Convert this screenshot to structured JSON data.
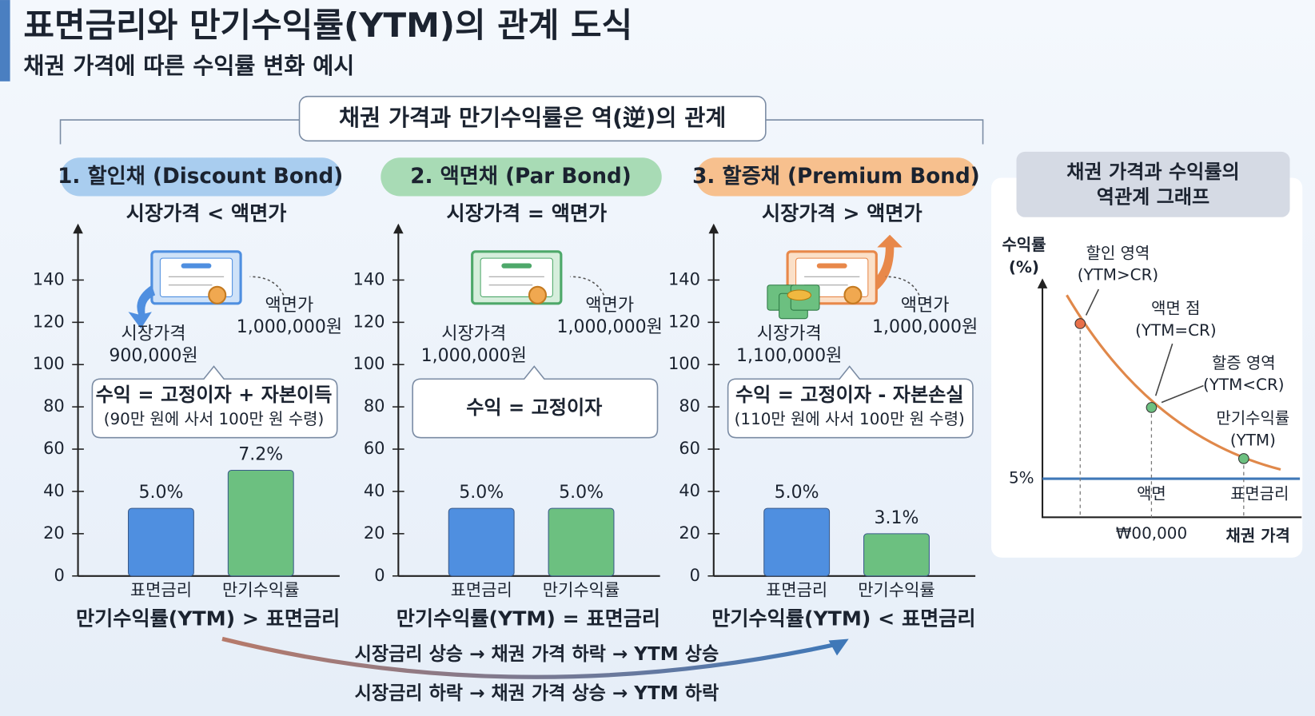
{
  "header": {
    "title": "표면금리와 만기수익률(YTM)의 관계 도식",
    "subtitle": "채권 가격에 따른 수익률 변화 예시"
  },
  "banner": "채권 가격과 만기수익률은 역(逆)의 관계",
  "panels": [
    {
      "title": "1. 할인채 (Discount Bond)",
      "condition": "시장가격 < 액면가",
      "face": [
        "액면가",
        "1,000,000원"
      ],
      "price": [
        "시장가격",
        "900,000원"
      ],
      "formula": [
        "수익 = 고정이자 + 자본이득",
        "(90만 원에 사서 100만 원 수령)"
      ],
      "relation": "만기수익률(YTM) > 표면금리"
    },
    {
      "title": "2. 액면채 (Par Bond)",
      "condition": "시장가격 = 액면가",
      "face": [
        "액면가",
        "1,000,000원"
      ],
      "price": [
        "시장가격",
        "1,000,000원"
      ],
      "formula": [
        "수익 = 고정이자"
      ],
      "relation": "만기수익률(YTM) = 표면금리"
    },
    {
      "title": "3. 할증채 (Premium Bond)",
      "condition": "시장가격 > 액면가",
      "face": [
        "액면가",
        "1,000,000원"
      ],
      "price": [
        "시장가격",
        "1,100,000원"
      ],
      "formula": [
        "수익 = 고정이자 - 자본손실",
        "(110만 원에 사서 100만 원 수령)"
      ],
      "relation": "만기수익률(YTM) < 표면금리"
    }
  ],
  "chart_data": [
    {
      "type": "bar",
      "categories": [
        "표면금리",
        "만기수익률"
      ],
      "values": [
        32,
        50
      ],
      "annotations": [
        "5.0%",
        "7.2%"
      ],
      "colors": [
        "#4f8fe0",
        "#6cc080"
      ],
      "ylim": [
        0,
        160
      ],
      "yticks": [
        0,
        20,
        40,
        60,
        80,
        100,
        120,
        140
      ]
    },
    {
      "type": "bar",
      "categories": [
        "표면금리",
        "만기수익률"
      ],
      "values": [
        32,
        32
      ],
      "annotations": [
        "5.0%",
        "5.0%"
      ],
      "colors": [
        "#4f8fe0",
        "#6cc080"
      ],
      "ylim": [
        0,
        160
      ],
      "yticks": [
        0,
        20,
        40,
        60,
        80,
        100,
        120,
        140
      ]
    },
    {
      "type": "bar",
      "categories": [
        "표면금리",
        "만기수익률"
      ],
      "values": [
        32,
        20
      ],
      "annotations": [
        "5.0%",
        "3.1%"
      ],
      "colors": [
        "#4f8fe0",
        "#6cc080"
      ],
      "ylim": [
        0,
        160
      ],
      "yticks": [
        0,
        20,
        40,
        60,
        80,
        100,
        120,
        140
      ]
    }
  ],
  "flow": [
    "시장금리 상승 → 채권 가격 하락 → YTM 상승",
    "시장금리 하락 → 채권 가격 상승 → YTM 하락"
  ],
  "graph": {
    "title": [
      "채권 가격과 수익률의",
      "역관계 그래프"
    ],
    "y_label": [
      "수익률",
      "(%)"
    ],
    "x_label": "채권 가격",
    "rate_label": "5%",
    "x_tick": "₩00,000",
    "discount": [
      "할인 영역",
      "(YTM>CR)"
    ],
    "par": [
      "액면 점",
      "(YTM=CR)"
    ],
    "premium": [
      "할증 영역",
      "(YTM<CR)"
    ],
    "ytm": [
      "만기수익률",
      "(YTM)"
    ],
    "par_tick": "액면",
    "coupon_label": "표면금리"
  }
}
